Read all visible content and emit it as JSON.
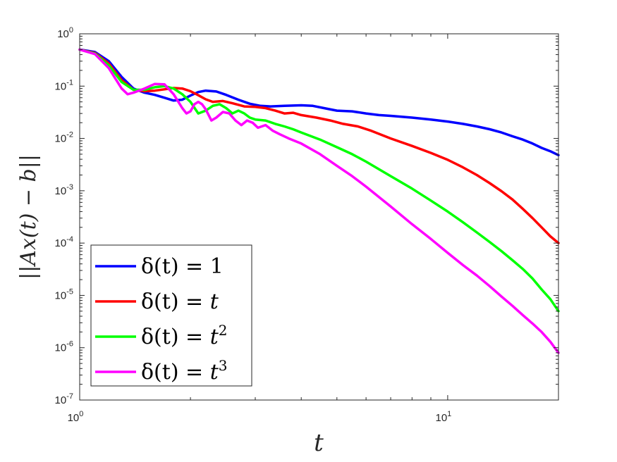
{
  "chart_data": {
    "type": "line",
    "xlabel": "t",
    "ylabel": "||Ax(t) − b||",
    "x_scale": "log",
    "y_scale": "log",
    "xlim": [
      1,
      20
    ],
    "ylim": [
      1e-07,
      1
    ],
    "x_ticks": [
      {
        "value": 1,
        "base": "10",
        "exp": "0"
      },
      {
        "value": 10,
        "base": "10",
        "exp": "1"
      }
    ],
    "y_ticks": [
      {
        "value": 1,
        "base": "10",
        "exp": "0"
      },
      {
        "value": 0.1,
        "base": "10",
        "exp": "-1"
      },
      {
        "value": 0.01,
        "base": "10",
        "exp": "-2"
      },
      {
        "value": 0.001,
        "base": "10",
        "exp": "-3"
      },
      {
        "value": 0.0001,
        "base": "10",
        "exp": "-4"
      },
      {
        "value": 1e-05,
        "base": "10",
        "exp": "-5"
      },
      {
        "value": 1e-06,
        "base": "10",
        "exp": "-6"
      },
      {
        "value": 1e-07,
        "base": "10",
        "exp": "-7"
      }
    ],
    "grid": false,
    "legend_position": "bottom-left",
    "series": [
      {
        "name": "δ(t) = 1",
        "legend": {
          "lhs": "δ(t) = ",
          "rhs": "1",
          "sup": ""
        },
        "color": "#0000ff",
        "points": [
          [
            1.0,
            0.5
          ],
          [
            1.1,
            0.45
          ],
          [
            1.2,
            0.3
          ],
          [
            1.3,
            0.15
          ],
          [
            1.4,
            0.09
          ],
          [
            1.5,
            0.075
          ],
          [
            1.6,
            0.068
          ],
          [
            1.7,
            0.06
          ],
          [
            1.8,
            0.053
          ],
          [
            1.9,
            0.055
          ],
          [
            2.0,
            0.066
          ],
          [
            2.1,
            0.077
          ],
          [
            2.2,
            0.082
          ],
          [
            2.35,
            0.079
          ],
          [
            2.5,
            0.068
          ],
          [
            2.7,
            0.055
          ],
          [
            2.9,
            0.046
          ],
          [
            3.1,
            0.042
          ],
          [
            3.3,
            0.041
          ],
          [
            3.6,
            0.042
          ],
          [
            4.0,
            0.043
          ],
          [
            4.3,
            0.042
          ],
          [
            4.7,
            0.037
          ],
          [
            5.0,
            0.034
          ],
          [
            5.5,
            0.033
          ],
          [
            6.0,
            0.03
          ],
          [
            6.5,
            0.028
          ],
          [
            7.0,
            0.027
          ],
          [
            8.0,
            0.025
          ],
          [
            9.0,
            0.023
          ],
          [
            10.0,
            0.021
          ],
          [
            11.0,
            0.019
          ],
          [
            12.0,
            0.017
          ],
          [
            13.0,
            0.015
          ],
          [
            14.0,
            0.013
          ],
          [
            15.0,
            0.011
          ],
          [
            16.0,
            0.0095
          ],
          [
            17.0,
            0.008
          ],
          [
            18.0,
            0.0066
          ],
          [
            19.0,
            0.0057
          ],
          [
            20.0,
            0.0048
          ]
        ]
      },
      {
        "name": "δ(t) = t",
        "legend": {
          "lhs": "δ(t) = ",
          "rhs": "t",
          "sup": ""
        },
        "color": "#ff0000",
        "points": [
          [
            1.0,
            0.5
          ],
          [
            1.1,
            0.43
          ],
          [
            1.2,
            0.27
          ],
          [
            1.3,
            0.13
          ],
          [
            1.4,
            0.085
          ],
          [
            1.5,
            0.08
          ],
          [
            1.6,
            0.082
          ],
          [
            1.7,
            0.087
          ],
          [
            1.8,
            0.092
          ],
          [
            1.9,
            0.09
          ],
          [
            2.0,
            0.08
          ],
          [
            2.1,
            0.067
          ],
          [
            2.2,
            0.056
          ],
          [
            2.3,
            0.05
          ],
          [
            2.45,
            0.052
          ],
          [
            2.6,
            0.047
          ],
          [
            2.8,
            0.041
          ],
          [
            3.0,
            0.04
          ],
          [
            3.2,
            0.038
          ],
          [
            3.4,
            0.034
          ],
          [
            3.6,
            0.03
          ],
          [
            3.8,
            0.031
          ],
          [
            4.0,
            0.028
          ],
          [
            4.4,
            0.025
          ],
          [
            4.8,
            0.022
          ],
          [
            5.2,
            0.019
          ],
          [
            5.7,
            0.017
          ],
          [
            6.2,
            0.014
          ],
          [
            7.0,
            0.01
          ],
          [
            8.0,
            0.0072
          ],
          [
            9.0,
            0.0053
          ],
          [
            10.0,
            0.0039
          ],
          [
            11.0,
            0.0028
          ],
          [
            12.0,
            0.002
          ],
          [
            13.0,
            0.0014
          ],
          [
            14.0,
            0.00098
          ],
          [
            15.0,
            0.00068
          ],
          [
            16.0,
            0.00045
          ],
          [
            17.0,
            0.0003
          ],
          [
            18.0,
            0.0002
          ],
          [
            19.0,
            0.000135
          ],
          [
            20.0,
            0.0001
          ]
        ]
      },
      {
        "name": "δ(t) = t²",
        "legend": {
          "lhs": "δ(t) = ",
          "rhs": "t",
          "sup": "2"
        },
        "color": "#00ff00",
        "points": [
          [
            1.0,
            0.5
          ],
          [
            1.1,
            0.42
          ],
          [
            1.2,
            0.25
          ],
          [
            1.3,
            0.12
          ],
          [
            1.4,
            0.085
          ],
          [
            1.5,
            0.085
          ],
          [
            1.6,
            0.095
          ],
          [
            1.7,
            0.1
          ],
          [
            1.8,
            0.09
          ],
          [
            1.9,
            0.07
          ],
          [
            2.0,
            0.05
          ],
          [
            2.1,
            0.03
          ],
          [
            2.2,
            0.034
          ],
          [
            2.3,
            0.042
          ],
          [
            2.4,
            0.045
          ],
          [
            2.5,
            0.038
          ],
          [
            2.6,
            0.03
          ],
          [
            2.7,
            0.034
          ],
          [
            2.8,
            0.03
          ],
          [
            2.9,
            0.025
          ],
          [
            3.0,
            0.023
          ],
          [
            3.2,
            0.022
          ],
          [
            3.4,
            0.019
          ],
          [
            3.6,
            0.017
          ],
          [
            3.8,
            0.015
          ],
          [
            4.0,
            0.013
          ],
          [
            4.5,
            0.0095
          ],
          [
            5.0,
            0.0068
          ],
          [
            5.5,
            0.005
          ],
          [
            6.0,
            0.0036
          ],
          [
            7.0,
            0.0019
          ],
          [
            8.0,
            0.0011
          ],
          [
            9.0,
            0.00065
          ],
          [
            10.0,
            0.0004
          ],
          [
            11.0,
            0.00025
          ],
          [
            12.0,
            0.00016
          ],
          [
            13.0,
            0.000105
          ],
          [
            14.0,
            7e-05
          ],
          [
            15.0,
            4.7e-05
          ],
          [
            16.0,
            3.2e-05
          ],
          [
            17.0,
            2.1e-05
          ],
          [
            18.0,
            1.3e-05
          ],
          [
            19.0,
            8.5e-06
          ],
          [
            20.0,
            5e-06
          ]
        ]
      },
      {
        "name": "δ(t) = t³",
        "legend": {
          "lhs": "δ(t) = ",
          "rhs": "t",
          "sup": "3"
        },
        "color": "#ff00ff",
        "points": [
          [
            1.0,
            0.5
          ],
          [
            1.1,
            0.41
          ],
          [
            1.2,
            0.22
          ],
          [
            1.3,
            0.09
          ],
          [
            1.35,
            0.07
          ],
          [
            1.4,
            0.075
          ],
          [
            1.5,
            0.09
          ],
          [
            1.6,
            0.11
          ],
          [
            1.7,
            0.108
          ],
          [
            1.8,
            0.07
          ],
          [
            1.9,
            0.038
          ],
          [
            1.95,
            0.03
          ],
          [
            2.0,
            0.033
          ],
          [
            2.05,
            0.045
          ],
          [
            2.1,
            0.05
          ],
          [
            2.15,
            0.045
          ],
          [
            2.2,
            0.036
          ],
          [
            2.28,
            0.022
          ],
          [
            2.35,
            0.025
          ],
          [
            2.45,
            0.032
          ],
          [
            2.55,
            0.03
          ],
          [
            2.65,
            0.022
          ],
          [
            2.75,
            0.018
          ],
          [
            2.85,
            0.022
          ],
          [
            2.95,
            0.02
          ],
          [
            3.05,
            0.016
          ],
          [
            3.2,
            0.018
          ],
          [
            3.35,
            0.014
          ],
          [
            3.5,
            0.012
          ],
          [
            3.7,
            0.01
          ],
          [
            4.0,
            0.008
          ],
          [
            4.5,
            0.005
          ],
          [
            5.0,
            0.003
          ],
          [
            5.5,
            0.0019
          ],
          [
            6.0,
            0.0012
          ],
          [
            7.0,
            0.0005
          ],
          [
            8.0,
            0.00023
          ],
          [
            9.0,
            0.00012
          ],
          [
            10.0,
            6.5e-05
          ],
          [
            11.0,
            3.8e-05
          ],
          [
            12.0,
            2.4e-05
          ],
          [
            13.0,
            1.5e-05
          ],
          [
            14.0,
            9.5e-06
          ],
          [
            15.0,
            6.3e-06
          ],
          [
            16.0,
            4.2e-06
          ],
          [
            17.0,
            2.9e-06
          ],
          [
            18.0,
            2e-06
          ],
          [
            19.0,
            1.3e-06
          ],
          [
            20.0,
            8e-07
          ]
        ]
      }
    ]
  }
}
